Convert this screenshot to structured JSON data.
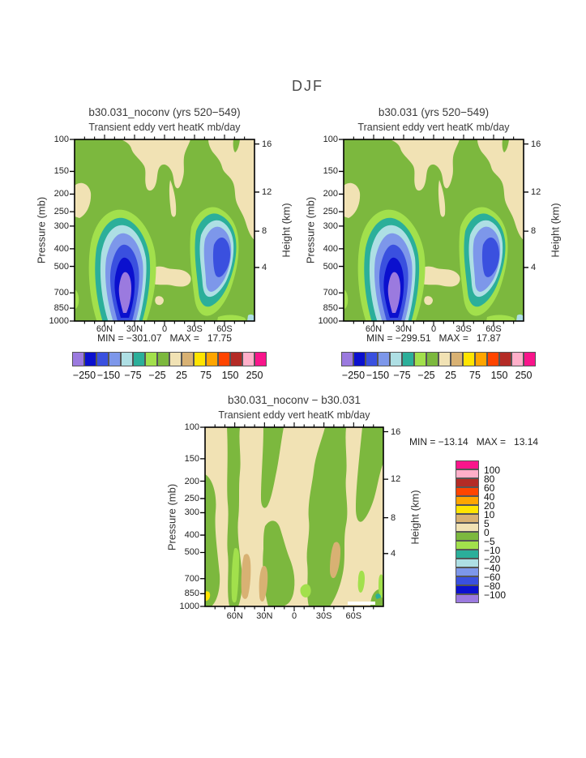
{
  "page_title": "DJF",
  "panels": {
    "top_left": {
      "title": "b30.031_noconv (yrs 520−549)",
      "subtitle": "Transient eddy vert heatK mb/day",
      "stats": "MIN = −301.07   MAX =   17.75"
    },
    "top_right": {
      "title": "b30.031 (yrs 520−549)",
      "subtitle": "Transient eddy vert heatK mb/day",
      "stats": "MIN = −299.51   MAX =   17.87"
    },
    "bottom": {
      "title": "b30.031_noconv − b30.031",
      "subtitle": "Transient eddy vert heatK mb/day",
      "stats": "MIN = −13.14   MAX =   13.14"
    }
  },
  "axes": {
    "pressure_label": "Pressure (mb)",
    "height_label": "Height (km)",
    "pressure_ticks": [
      {
        "label": "100",
        "f": 0
      },
      {
        "label": "150",
        "f": 0.176
      },
      {
        "label": "200",
        "f": 0.301
      },
      {
        "label": "250",
        "f": 0.398
      },
      {
        "label": "300",
        "f": 0.477
      },
      {
        "label": "400",
        "f": 0.602
      },
      {
        "label": "500",
        "f": 0.699
      },
      {
        "label": "700",
        "f": 0.845
      },
      {
        "label": "850",
        "f": 0.929
      },
      {
        "label": "1000",
        "f": 1
      }
    ],
    "height_ticks": [
      {
        "label": "16",
        "f": 0.025
      },
      {
        "label": "12",
        "f": 0.29
      },
      {
        "label": "8",
        "f": 0.505
      },
      {
        "label": "4",
        "f": 0.705
      }
    ],
    "lat_ticks": [
      {
        "label": "60N",
        "f": 0.1667
      },
      {
        "label": "30N",
        "f": 0.3333
      },
      {
        "label": "0",
        "f": 0.5
      },
      {
        "label": "30S",
        "f": 0.6667
      },
      {
        "label": "60S",
        "f": 0.8333
      }
    ]
  },
  "colorbar": {
    "colors": [
      "#9B7ADF",
      "#0B10CE",
      "#3A50DF",
      "#7D97EA",
      "#AEDFE4",
      "#2BAF9A",
      "#A2E04C",
      "#7CB83E",
      "#F1E2B4",
      "#D8B173",
      "#FFE400",
      "#FFA500",
      "#FF4500",
      "#B42B26",
      "#FFAFC9",
      "#F9158B"
    ],
    "labels": [
      "−250",
      "−150",
      "−75",
      "−25",
      "25",
      "75",
      "150",
      "250"
    ],
    "label_boundary_indices": [
      1,
      3,
      5,
      7,
      9,
      11,
      13,
      15
    ]
  },
  "legend": {
    "colors": [
      "#F9158B",
      "#FFAFC9",
      "#B42B26",
      "#FF4500",
      "#FFA500",
      "#FFE400",
      "#D8B173",
      "#F1E2B4",
      "#7CB83E",
      "#A2E04C",
      "#2BAF9A",
      "#AEDFE4",
      "#7D97EA",
      "#3A50DF",
      "#0B10CE",
      "#9B7ADF"
    ],
    "labels": [
      "100",
      "80",
      "60",
      "40",
      "20",
      "10",
      "5",
      "0",
      "−5",
      "−10",
      "−20",
      "−40",
      "−60",
      "−80",
      "−100"
    ]
  },
  "palette": {
    "green": "#7CB83E",
    "light_green": "#A2E04C",
    "teal": "#2BAF9A",
    "pale_cyan": "#AEDFE4",
    "periwinkle": "#7D97EA",
    "med_blue": "#3A50DF",
    "dark_blue": "#0B10CE",
    "purple": "#9B7ADF",
    "light_tan": "#F1E2B4",
    "dark_tan": "#D8B173",
    "yellow": "#FFE400",
    "orange": "#FFA500",
    "red_orange": "#FF4500",
    "dark_red": "#B42B26",
    "pink": "#FFAFC9",
    "magenta": "#F9158B"
  },
  "chart_data": [
    {
      "type": "heatmap",
      "title": "b30.031_noconv (yrs 520−549)",
      "subtitle": "Transient eddy vert heatK mb/day",
      "season": "DJF",
      "x_range": [
        "90N",
        "90S"
      ],
      "x_ticks": [
        "60N",
        "30N",
        "0",
        "30S",
        "60S"
      ],
      "y_left_label": "Pressure (mb)",
      "y_left_ticks": [
        100,
        150,
        200,
        250,
        300,
        400,
        500,
        700,
        850,
        1000
      ],
      "y_right_label": "Height (km)",
      "y_right_ticks": [
        16,
        12,
        8,
        4
      ],
      "contour_levels": [
        -250,
        -200,
        -150,
        -100,
        -75,
        -50,
        -25,
        0,
        25,
        50,
        75,
        100,
        150,
        200,
        250
      ],
      "min": -301.07,
      "max": 17.75,
      "description": "Strong negative centers (below −250) near 45N at 500–850 mb and near 45S at 400–700 mb; weak positive (0–25) regions in upper levels and tropics"
    },
    {
      "type": "heatmap",
      "title": "b30.031 (yrs 520−549)",
      "subtitle": "Transient eddy vert heatK mb/day",
      "season": "DJF",
      "x_range": [
        "90N",
        "90S"
      ],
      "x_ticks": [
        "60N",
        "30N",
        "0",
        "30S",
        "60S"
      ],
      "y_left_label": "Pressure (mb)",
      "y_left_ticks": [
        100,
        150,
        200,
        250,
        300,
        400,
        500,
        700,
        850,
        1000
      ],
      "y_right_label": "Height (km)",
      "y_right_ticks": [
        16,
        12,
        8,
        4
      ],
      "contour_levels": [
        -250,
        -200,
        -150,
        -100,
        -75,
        -50,
        -25,
        0,
        25,
        50,
        75,
        100,
        150,
        200,
        250
      ],
      "min": -299.51,
      "max": 17.87,
      "description": "Nearly identical pattern to b30.031_noconv: two deep negative eddy heat flux centers in midlatitudes of both hemispheres"
    },
    {
      "type": "heatmap",
      "title": "b30.031_noconv − b30.031",
      "subtitle": "Transient eddy vert heatK mb/day",
      "season": "DJF",
      "x_range": [
        "90N",
        "90S"
      ],
      "x_ticks": [
        "60N",
        "30N",
        "0",
        "30S",
        "60S"
      ],
      "y_left_label": "Pressure (mb)",
      "y_left_ticks": [
        100,
        150,
        200,
        250,
        300,
        400,
        500,
        700,
        850,
        1000
      ],
      "y_right_label": "Height (km)",
      "y_right_ticks": [
        16,
        12,
        8,
        4
      ],
      "contour_levels": [
        -100,
        -80,
        -60,
        -40,
        -20,
        -10,
        -5,
        0,
        5,
        10,
        20,
        40,
        60,
        80,
        100
      ],
      "min": -13.14,
      "max": 13.14,
      "description": "Small differences within ±13: alternating vertical bands of weak positive (0 to 5, tan) and weak negative (−5 to 0, green) values; a few 5–10 patches near the surface"
    }
  ]
}
